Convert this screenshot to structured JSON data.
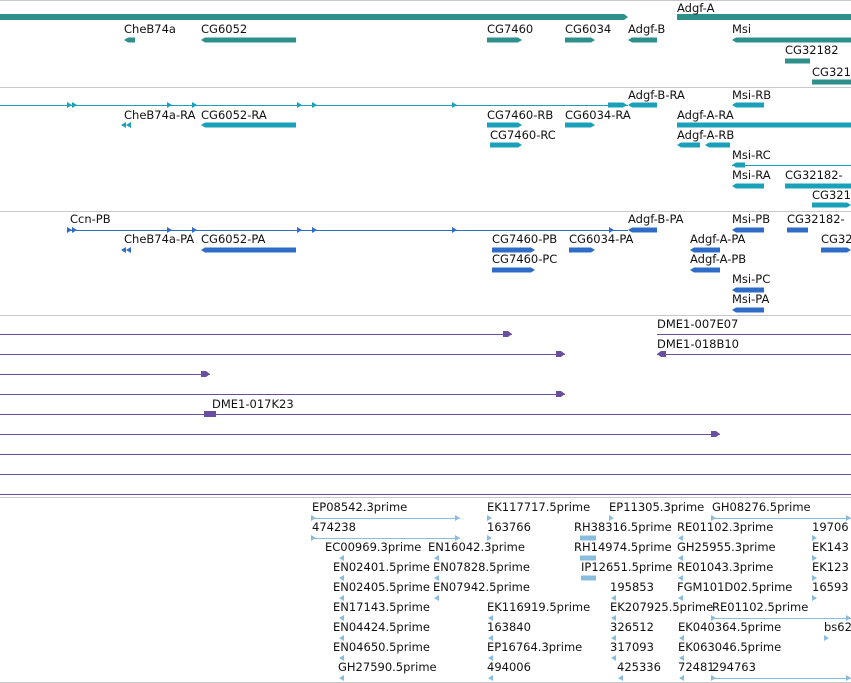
{
  "colors": {
    "gene": "#2f8f8a",
    "transcript": "#1aa0b8",
    "cds": "#2f6cc8",
    "clone": "#6a4fa0",
    "est": "#88bde0",
    "divider": "#c8c8c8"
  },
  "tracks": {
    "genes": {
      "labels": [
        "Adgf-A",
        "CheB74a",
        "CG6052",
        "CG7460",
        "CG6034",
        "Adgf-B",
        "Msi",
        "CG32182",
        "CG321"
      ]
    },
    "transcripts": {
      "labels": [
        "Adgf-B-RA",
        "Msi-RB",
        "CheB74a-RA",
        "CG6052-RA",
        "CG7460-RB",
        "CG6034-RA",
        "Adgf-A-RA",
        "CG7460-RC",
        "Adgf-A-RB",
        "Msi-RC",
        "Msi-RA",
        "CG32182-",
        "CG321"
      ]
    },
    "cds": {
      "labels": [
        "Ccn-PB",
        "Adgf-B-PA",
        "Msi-PB",
        "CG32182-",
        "CheB74a-PA",
        "CG6052-PA",
        "CG7460-PB",
        "CG6034-PA",
        "Adgf-A-PA",
        "CG32",
        "CG7460-PC",
        "Adgf-A-PB",
        "Msi-PC",
        "Msi-PA"
      ]
    },
    "clones": {
      "labels": [
        "DME1-007E07",
        "DME1-018B10",
        "DME1-017K23"
      ]
    },
    "ests": {
      "labels": [
        "EP08542.3prime",
        "EK117717.5prime",
        "EP11305.3prime",
        "GH08276.5prime",
        "474238",
        "163766",
        "RH38316.5prime",
        "RE01102.3prime",
        "19706",
        "EC00969.3prime",
        "EN16042.3prime",
        "RH14974.5prime",
        "GH25955.3prime",
        "EK143",
        "EN02401.5prime",
        "EN07828.5prime",
        "IP12651.5prime",
        "RE01043.3prime",
        "EK123",
        "EN02405.5prime",
        "EN07942.5prime",
        "195853",
        "FGM101D02.5prime",
        "16593",
        "EN17143.5prime",
        "EK116919.5prime",
        "EK207925.5prime",
        "RE01102.5prime",
        "EN04424.5prime",
        "163840",
        "326512",
        "EK040364.5prime",
        "bs62",
        "EN04650.5prime",
        "EP16764.3prime",
        "317093",
        "EK063046.5prime",
        "GH27590.5prime",
        "494006",
        "425336",
        "72481",
        "294763"
      ]
    }
  }
}
